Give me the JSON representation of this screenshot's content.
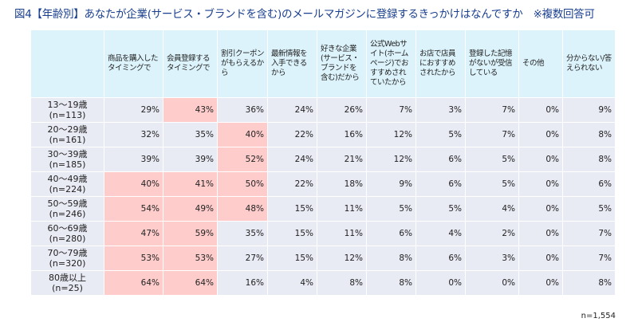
{
  "title": "図4【年齢別】あなたが企業(サービス・ブランドを含む)のメールマガジンに登録するきっかけはなんですか　※複数回答可",
  "columns": [
    "商品を購入したタイミングで",
    "会員登録するタイミングで",
    "割引クーポンがもらえるから",
    "最新情報を入手できるから",
    "好きな企業(サービス・ブランドを含む)だから",
    "公式Webサイト(ホームページ)でおすすめされていたから",
    "お店で店員におすすめされたから",
    "登録した記憶がないが受信している",
    "その他",
    "分からない/答えられない"
  ],
  "highlight_color": "#ffcccc",
  "rows": [
    {
      "label": "13～19歳\n(n=113)",
      "values": [
        "29%",
        "43%",
        "36%",
        "24%",
        "26%",
        "7%",
        "3%",
        "7%",
        "0%",
        "9%"
      ],
      "highlight": [
        1
      ]
    },
    {
      "label": "20～29歳\n(n=161)",
      "values": [
        "32%",
        "35%",
        "40%",
        "22%",
        "16%",
        "12%",
        "5%",
        "7%",
        "0%",
        "8%"
      ],
      "highlight": [
        2
      ]
    },
    {
      "label": "30～39歳\n(n=185)",
      "values": [
        "39%",
        "39%",
        "52%",
        "24%",
        "21%",
        "12%",
        "6%",
        "5%",
        "0%",
        "8%"
      ],
      "highlight": [
        2
      ]
    },
    {
      "label": "40～49歳\n(n=224)",
      "values": [
        "40%",
        "41%",
        "50%",
        "22%",
        "18%",
        "9%",
        "6%",
        "5%",
        "0%",
        "6%"
      ],
      "highlight": [
        0,
        1,
        2
      ]
    },
    {
      "label": "50～59歳\n(n=246)",
      "values": [
        "54%",
        "49%",
        "48%",
        "15%",
        "11%",
        "5%",
        "5%",
        "4%",
        "0%",
        "5%"
      ],
      "highlight": [
        0,
        1,
        2
      ]
    },
    {
      "label": "60～69歳\n(n=280)",
      "values": [
        "47%",
        "59%",
        "35%",
        "15%",
        "11%",
        "6%",
        "4%",
        "2%",
        "0%",
        "7%"
      ],
      "highlight": [
        0,
        1
      ]
    },
    {
      "label": "70～79歳\n(n=320)",
      "values": [
        "53%",
        "53%",
        "27%",
        "15%",
        "12%",
        "8%",
        "6%",
        "3%",
        "0%",
        "7%"
      ],
      "highlight": [
        0,
        1
      ]
    },
    {
      "label": "80歳以上\n(n=25)",
      "values": [
        "64%",
        "64%",
        "16%",
        "4%",
        "8%",
        "8%",
        "0%",
        "0%",
        "0%",
        "8%"
      ],
      "highlight": [
        0,
        1
      ]
    }
  ],
  "total_n": "n=1,554"
}
